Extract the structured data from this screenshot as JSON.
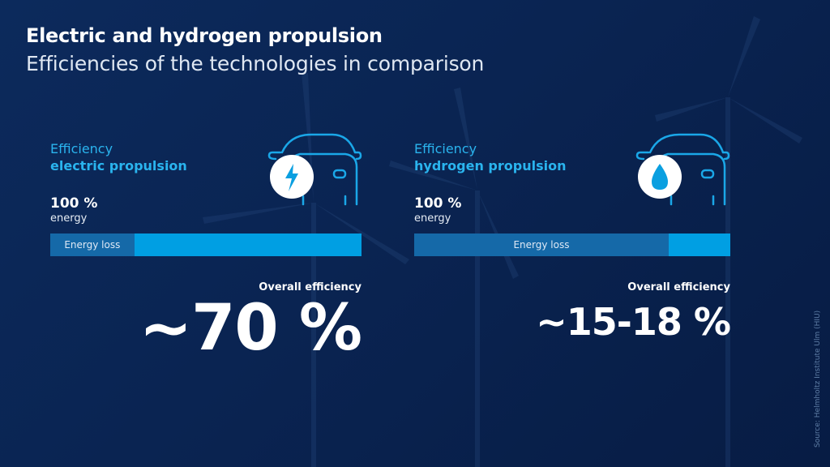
{
  "header": {
    "title": "Electric and hydrogen propulsion",
    "subtitle": "Efficiencies of the technologies in comparison"
  },
  "source": "Source: Helmholtz Institute Ulm (HIU)",
  "colors": {
    "accent": "#009fe3",
    "loss": "#1569a8",
    "background": "#0a2452"
  },
  "icons": {
    "electric": "car-with-lightning-icon",
    "hydrogen": "car-with-droplet-icon"
  },
  "chart_data": [
    {
      "type": "bar",
      "label": "Efficiency",
      "technology": "electric propulsion",
      "energy_value": "100 %",
      "energy_unit": "energy",
      "loss_label": "Energy loss",
      "loss_fraction": 0.27,
      "overall_label": "Overall efficiency",
      "overall_value": "~70 %"
    },
    {
      "type": "bar",
      "label": "Efficiency",
      "technology": "hydrogen propulsion",
      "energy_value": "100 %",
      "energy_unit": "energy",
      "loss_label": "Energy loss",
      "loss_fraction": 0.805,
      "overall_label": "Overall efficiency",
      "overall_value": "~15-18 %"
    }
  ]
}
